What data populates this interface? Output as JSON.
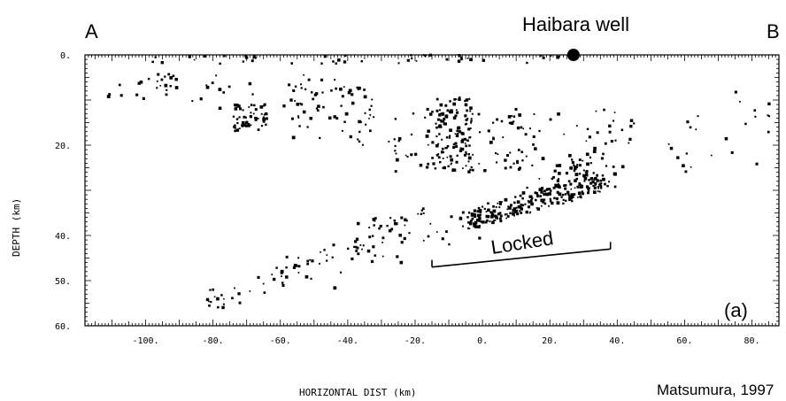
{
  "annotations": {
    "label_a": "A",
    "label_b": "B",
    "well_label": "Haibara well",
    "locked_label": "Locked",
    "panel_label": "(a)",
    "credit": "Matsumura, 1997"
  },
  "chart_data": {
    "type": "scatter",
    "xlabel": "HORIZONTAL DIST (km)",
    "ylabel": "DEPTH (km)",
    "xlim": [
      -118,
      88
    ],
    "ylim": [
      60,
      0
    ],
    "xticks": [
      -100,
      -80,
      -60,
      -40,
      -20,
      0,
      20,
      40,
      60,
      80
    ],
    "xtick_labels": [
      "-100.",
      "-80.",
      "-60.",
      "-40.",
      "-20.",
      "0.",
      "20.",
      "40.",
      "60.",
      "80."
    ],
    "yticks": [
      0,
      10,
      20,
      30,
      40,
      50,
      60
    ],
    "ytick_labels": [
      "0.",
      "",
      "20.",
      "",
      "40.",
      "50.",
      "60."
    ],
    "grid": false,
    "well": {
      "x": 27,
      "y": 0
    },
    "locked_segment": [
      [
        -15,
        47
      ],
      [
        38,
        43
      ]
    ],
    "clusters": [
      {
        "n": 45,
        "x0": -98,
        "x1": 30,
        "y0": 0,
        "y1": 2
      },
      {
        "n": 20,
        "x0": -112,
        "x1": -90,
        "y0": 4,
        "y1": 10
      },
      {
        "n": 30,
        "x0": -95,
        "x1": -40,
        "y0": 4,
        "y1": 12
      },
      {
        "n": 55,
        "x0": -74,
        "x1": -64,
        "y0": 11,
        "y1": 17
      },
      {
        "n": 60,
        "x0": -58,
        "x1": -32,
        "y0": 5,
        "y1": 20
      },
      {
        "n": 90,
        "x0": -28,
        "x1": 12,
        "y0": 12,
        "y1": 26
      },
      {
        "n": 110,
        "x0": -14,
        "x1": -3,
        "y0": 9,
        "y1": 26
      },
      {
        "n": 55,
        "x0": 8,
        "x1": 42,
        "y0": 12,
        "y1": 30
      },
      {
        "n": 25,
        "x0": 55,
        "x1": 86,
        "y0": 8,
        "y1": 26
      },
      {
        "n": 20,
        "x0": -20,
        "x1": 0,
        "y0": 33,
        "y1": 42
      },
      {
        "n": 30,
        "x0": -40,
        "x1": -22,
        "y0": 36,
        "y1": 46
      },
      {
        "n": 20,
        "x0": -62,
        "x1": -42,
        "y0": 44,
        "y1": 52
      },
      {
        "n": 10,
        "x0": -82,
        "x1": -76,
        "y0": 52,
        "y1": 57
      }
    ],
    "bands": [
      {
        "n": 240,
        "x0": -5,
        "y0": 37,
        "x1": 36,
        "y1": 28,
        "spread": 2.2
      },
      {
        "n": 40,
        "x0": 20,
        "y0": 29,
        "x1": 45,
        "y1": 16,
        "spread": 2.5
      },
      {
        "n": 40,
        "x0": -80,
        "y0": 55,
        "x1": -20,
        "y1": 37,
        "spread": 2.0
      }
    ]
  }
}
